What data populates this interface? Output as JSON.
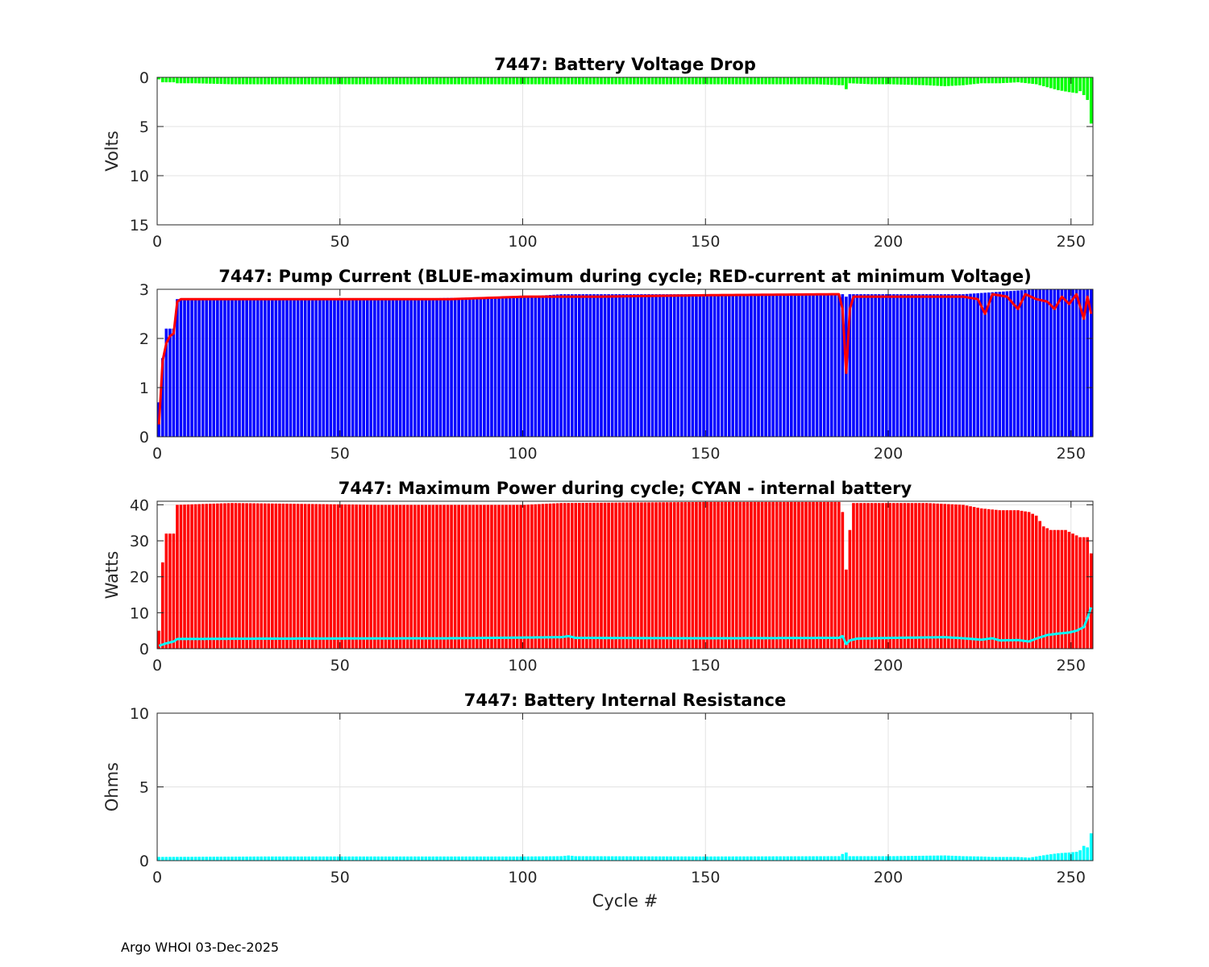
{
  "footer": "Argo WHOI 03-Dec-2025",
  "colors": {
    "green": "#00ff00",
    "blue": "#0000ff",
    "red": "#ff0000",
    "red_bar": "#ff0000",
    "cyan": "#00ffff",
    "grid": "#e3e3e3",
    "axis": "#262626"
  },
  "chart_data": [
    {
      "id": "voltage-drop",
      "type": "bar",
      "title": "7447: Battery Voltage Drop",
      "xlabel": "",
      "ylabel": "Volts",
      "xlim": [
        0,
        256
      ],
      "ylim": [
        0,
        15
      ],
      "y_reversed": true,
      "xticks": [
        "0",
        "50",
        "100",
        "150",
        "200",
        "250"
      ],
      "yticks": [
        "0",
        "5",
        "10",
        "15"
      ],
      "grid": true,
      "series": [
        {
          "name": "Voltage drop",
          "color": "green",
          "kind": "bar",
          "points": [
            [
              0,
              0.2
            ],
            [
              1,
              0.5
            ],
            [
              2,
              0.5
            ],
            [
              3,
              0.5
            ],
            [
              4,
              0.5
            ],
            [
              5,
              0.6
            ],
            [
              10,
              0.6
            ],
            [
              20,
              0.7
            ],
            [
              30,
              0.7
            ],
            [
              50,
              0.7
            ],
            [
              70,
              0.7
            ],
            [
              100,
              0.7
            ],
            [
              120,
              0.7
            ],
            [
              150,
              0.7
            ],
            [
              180,
              0.7
            ],
            [
              187,
              0.8
            ],
            [
              188,
              1.2
            ],
            [
              189,
              0.6
            ],
            [
              195,
              0.7
            ],
            [
              200,
              0.7
            ],
            [
              210,
              0.8
            ],
            [
              215,
              0.9
            ],
            [
              220,
              0.8
            ],
            [
              225,
              0.6
            ],
            [
              230,
              0.6
            ],
            [
              235,
              0.5
            ],
            [
              240,
              0.7
            ],
            [
              243,
              1.0
            ],
            [
              246,
              1.3
            ],
            [
              249,
              1.5
            ],
            [
              251,
              1.6
            ],
            [
              252,
              1.4
            ],
            [
              253,
              1.8
            ],
            [
              254,
              2.3
            ],
            [
              255,
              4.7
            ]
          ]
        }
      ]
    },
    {
      "id": "pump-current",
      "type": "bar",
      "title": "7447: Pump Current (BLUE-maximum during cycle; RED-current at minimum Voltage)",
      "xlabel": "",
      "ylabel": "",
      "xlim": [
        0,
        256
      ],
      "ylim": [
        0,
        3
      ],
      "xticks": [
        "0",
        "50",
        "100",
        "150",
        "200",
        "250"
      ],
      "yticks": [
        "0",
        "1",
        "2",
        "3"
      ],
      "grid": true,
      "series": [
        {
          "name": "BLUE-maximum during cycle",
          "color": "blue",
          "kind": "bar",
          "points": [
            [
              0,
              0.7
            ],
            [
              1,
              1.6
            ],
            [
              2,
              2.2
            ],
            [
              3,
              2.2
            ],
            [
              4,
              2.2
            ],
            [
              5,
              2.8
            ],
            [
              30,
              2.8
            ],
            [
              60,
              2.8
            ],
            [
              100,
              2.85
            ],
            [
              110,
              2.9
            ],
            [
              150,
              2.9
            ],
            [
              186,
              2.9
            ],
            [
              187,
              2.9
            ],
            [
              188,
              2.85
            ],
            [
              189,
              2.9
            ],
            [
              200,
              2.9
            ],
            [
              220,
              2.9
            ],
            [
              230,
              2.95
            ],
            [
              240,
              3.0
            ],
            [
              255,
              3.0
            ]
          ]
        },
        {
          "name": "RED-current at minimum Voltage",
          "color": "red",
          "kind": "line",
          "points": [
            [
              0,
              0.25
            ],
            [
              1,
              1.55
            ],
            [
              2,
              1.9
            ],
            [
              3,
              2.05
            ],
            [
              4,
              2.1
            ],
            [
              5,
              2.75
            ],
            [
              6,
              2.8
            ],
            [
              30,
              2.8
            ],
            [
              60,
              2.8
            ],
            [
              80,
              2.8
            ],
            [
              100,
              2.85
            ],
            [
              120,
              2.85
            ],
            [
              150,
              2.88
            ],
            [
              186,
              2.9
            ],
            [
              187,
              2.6
            ],
            [
              188,
              1.3
            ],
            [
              189,
              2.6
            ],
            [
              190,
              2.85
            ],
            [
              210,
              2.85
            ],
            [
              220,
              2.85
            ],
            [
              224,
              2.8
            ],
            [
              226,
              2.5
            ],
            [
              228,
              2.9
            ],
            [
              232,
              2.85
            ],
            [
              235,
              2.6
            ],
            [
              237,
              2.9
            ],
            [
              240,
              2.8
            ],
            [
              243,
              2.75
            ],
            [
              245,
              2.6
            ],
            [
              247,
              2.85
            ],
            [
              249,
              2.7
            ],
            [
              251,
              2.9
            ],
            [
              253,
              2.4
            ],
            [
              254,
              2.85
            ],
            [
              255,
              2.5
            ]
          ]
        }
      ]
    },
    {
      "id": "max-power",
      "type": "bar",
      "title": "7447: Maximum Power during cycle; CYAN - internal battery",
      "xlabel": "",
      "ylabel": "Watts",
      "xlim": [
        0,
        256
      ],
      "ylim": [
        0,
        41
      ],
      "xticks": [
        "0",
        "50",
        "100",
        "150",
        "200",
        "250"
      ],
      "yticks": [
        "0",
        "10",
        "20",
        "30",
        "40"
      ],
      "grid": true,
      "series": [
        {
          "name": "Maximum Power",
          "color": "red_bar",
          "kind": "bar",
          "points": [
            [
              0,
              5
            ],
            [
              1,
              24
            ],
            [
              2,
              32
            ],
            [
              3,
              32
            ],
            [
              4,
              32
            ],
            [
              5,
              40
            ],
            [
              20,
              40.5
            ],
            [
              60,
              40
            ],
            [
              100,
              40
            ],
            [
              110,
              40.5
            ],
            [
              150,
              40.8
            ],
            [
              186,
              40.8
            ],
            [
              187,
              38
            ],
            [
              188,
              22
            ],
            [
              189,
              33
            ],
            [
              190,
              40.5
            ],
            [
              210,
              40.5
            ],
            [
              220,
              40
            ],
            [
              225,
              39
            ],
            [
              230,
              38.5
            ],
            [
              235,
              38.5
            ],
            [
              238,
              38
            ],
            [
              240,
              37
            ],
            [
              242,
              34
            ],
            [
              244,
              33
            ],
            [
              248,
              33
            ],
            [
              252,
              31
            ],
            [
              254,
              31
            ],
            [
              255,
              26.5
            ]
          ]
        },
        {
          "name": "CYAN - internal battery",
          "color": "cyan",
          "kind": "line",
          "points": [
            [
              0,
              0.8
            ],
            [
              2,
              1.5
            ],
            [
              4,
              2
            ],
            [
              5,
              2.7
            ],
            [
              30,
              2.8
            ],
            [
              80,
              2.9
            ],
            [
              110,
              3.2
            ],
            [
              112,
              3.5
            ],
            [
              114,
              3.0
            ],
            [
              150,
              2.9
            ],
            [
              186,
              3.0
            ],
            [
              187,
              3.5
            ],
            [
              188,
              1.3
            ],
            [
              189,
              2.3
            ],
            [
              191,
              2.8
            ],
            [
              200,
              3.0
            ],
            [
              215,
              3.2
            ],
            [
              220,
              2.9
            ],
            [
              225,
              2.5
            ],
            [
              228,
              2.9
            ],
            [
              230,
              2.3
            ],
            [
              235,
              2.4
            ],
            [
              238,
              2.0
            ],
            [
              240,
              2.8
            ],
            [
              243,
              3.8
            ],
            [
              246,
              4.2
            ],
            [
              249,
              4.5
            ],
            [
              251,
              5.0
            ],
            [
              253,
              6.0
            ],
            [
              254,
              8.5
            ],
            [
              255,
              11.5
            ]
          ]
        }
      ]
    },
    {
      "id": "internal-resistance",
      "type": "bar",
      "title": "7447: Battery Internal Resistance",
      "xlabel": "Cycle #",
      "ylabel": "Ohms",
      "xlim": [
        0,
        256
      ],
      "ylim": [
        0,
        10
      ],
      "xticks": [
        "0",
        "50",
        "100",
        "150",
        "200",
        "250"
      ],
      "yticks": [
        "0",
        "5",
        "10"
      ],
      "grid": true,
      "series": [
        {
          "name": "Internal resistance",
          "color": "cyan",
          "kind": "bar",
          "points": [
            [
              0,
              0.25
            ],
            [
              30,
              0.28
            ],
            [
              100,
              0.28
            ],
            [
              110,
              0.3
            ],
            [
              112,
              0.35
            ],
            [
              114,
              0.3
            ],
            [
              150,
              0.28
            ],
            [
              186,
              0.3
            ],
            [
              187,
              0.45
            ],
            [
              188,
              0.55
            ],
            [
              189,
              0.3
            ],
            [
              200,
              0.3
            ],
            [
              215,
              0.35
            ],
            [
              220,
              0.3
            ],
            [
              225,
              0.28
            ],
            [
              228,
              0.25
            ],
            [
              235,
              0.25
            ],
            [
              238,
              0.2
            ],
            [
              240,
              0.28
            ],
            [
              243,
              0.4
            ],
            [
              246,
              0.5
            ],
            [
              249,
              0.55
            ],
            [
              251,
              0.6
            ],
            [
              252,
              0.7
            ],
            [
              253,
              1.0
            ],
            [
              254,
              0.9
            ],
            [
              255,
              1.85
            ]
          ]
        }
      ]
    }
  ]
}
